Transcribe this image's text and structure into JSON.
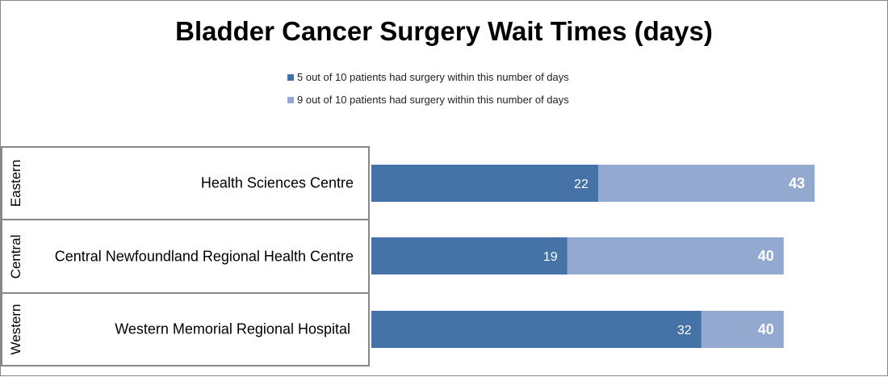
{
  "chart_data": {
    "type": "bar",
    "orientation": "horizontal",
    "title": "Bladder Cancer Surgery Wait Times (days)",
    "categories": [
      {
        "region": "Eastern",
        "hospital": "Health Sciences Centre"
      },
      {
        "region": "Central",
        "hospital": "Central Newfoundland Regional Health Centre"
      },
      {
        "region": "Western",
        "hospital": "Western Memorial Regional Hospital"
      }
    ],
    "series": [
      {
        "name": "5 out of 10 patients had surgery within this number of days",
        "color": "#4573a7",
        "values": [
          22,
          19,
          32
        ]
      },
      {
        "name": "9 out of 10 patients had surgery within this number of days",
        "color": "#93a9cf",
        "values": [
          43,
          40,
          40
        ]
      }
    ],
    "xlim": [
      0,
      50
    ],
    "grid": false,
    "legend_position": "top"
  }
}
